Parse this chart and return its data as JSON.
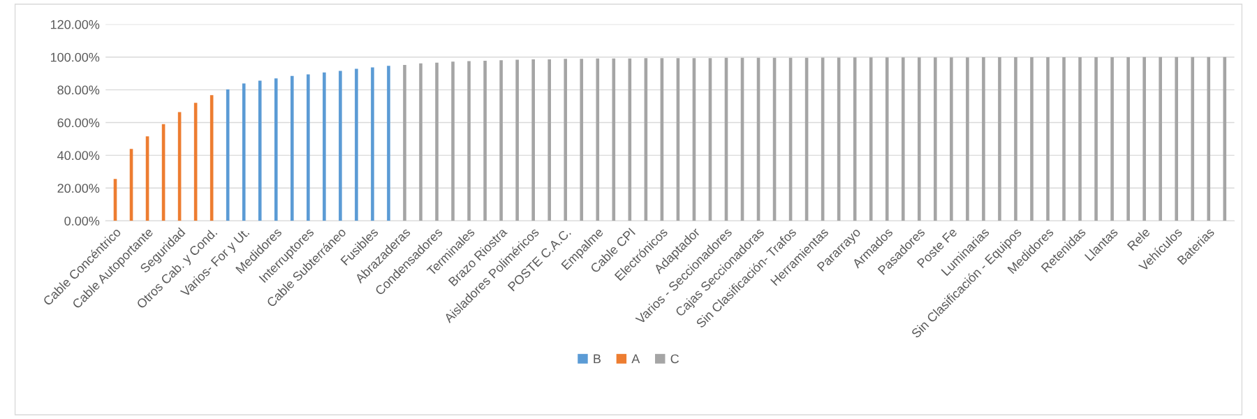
{
  "chart_data": {
    "type": "bar",
    "categories": [
      "Cable Concéntrico",
      null,
      "Cable Autoportante",
      null,
      "Seguridad",
      null,
      "Otros Cab. y Cond.",
      null,
      "Varios- For y Ut.",
      null,
      "Medidores",
      null,
      "Interruptores",
      null,
      "Cable Subterráneo",
      null,
      "Fusibles",
      null,
      "Abrazaderas",
      null,
      "Condensadores",
      null,
      "Terminales",
      null,
      "Brazo Riostra",
      null,
      "Aisladores Poliméricos",
      null,
      "POSTE C.A.C.",
      null,
      "Empalme",
      null,
      "Cable CPI",
      null,
      "Electrónicos",
      null,
      "Adaptador",
      null,
      "Varios - Seccionadores",
      null,
      "Cajas Seccionadoras",
      null,
      "Sin Clasificación- Trafos",
      null,
      "Herramientas",
      null,
      "Pararrayo",
      null,
      "Armados",
      null,
      "Pasadores",
      null,
      "Poste Fe",
      null,
      "Luminarias",
      null,
      "Sin Clasificación - Equipos",
      null,
      "Medidores",
      null,
      "Retenidas",
      null,
      "Llantas",
      null,
      "Rele",
      null,
      "Vehículos",
      null,
      "Baterias",
      null
    ],
    "series": [
      {
        "name": "B",
        "color": "#5b9bd5",
        "values": [
          null,
          null,
          null,
          null,
          null,
          null,
          null,
          80.3,
          83.9,
          85.6,
          87.0,
          88.5,
          89.4,
          90.6,
          91.6,
          92.8,
          93.7,
          94.7,
          null,
          null,
          null,
          null,
          null,
          null,
          null,
          null,
          null,
          null,
          null,
          null,
          null,
          null,
          null,
          null,
          null,
          null,
          null,
          null,
          null,
          null,
          null,
          null,
          null,
          null,
          null,
          null,
          null,
          null,
          null,
          null,
          null,
          null,
          null,
          null,
          null,
          null,
          null,
          null,
          null,
          null,
          null,
          null,
          null,
          null,
          null,
          null,
          null,
          null,
          null,
          null
        ]
      },
      {
        "name": "A",
        "color": "#ed7d31",
        "values": [
          25.6,
          43.9,
          51.6,
          59.0,
          66.4,
          72.0,
          76.7,
          null,
          null,
          null,
          null,
          null,
          null,
          null,
          null,
          null,
          null,
          null,
          null,
          null,
          null,
          null,
          null,
          null,
          null,
          null,
          null,
          null,
          null,
          null,
          null,
          null,
          null,
          null,
          null,
          null,
          null,
          null,
          null,
          null,
          null,
          null,
          null,
          null,
          null,
          null,
          null,
          null,
          null,
          null,
          null,
          null,
          null,
          null,
          null,
          null,
          null,
          null,
          null,
          null,
          null,
          null,
          null,
          null,
          null,
          null,
          null,
          null,
          null,
          null
        ]
      },
      {
        "name": "C",
        "color": "#a5a5a5",
        "values": [
          null,
          null,
          null,
          null,
          null,
          null,
          null,
          null,
          null,
          null,
          null,
          null,
          null,
          null,
          null,
          null,
          null,
          null,
          95.2,
          96.1,
          96.6,
          97.2,
          97.5,
          97.7,
          98.1,
          98.4,
          98.6,
          98.6,
          98.9,
          98.9,
          99.1,
          99.1,
          99.1,
          99.3,
          99.3,
          99.3,
          99.3,
          99.3,
          99.5,
          99.5,
          99.5,
          99.6,
          99.6,
          99.6,
          99.7,
          99.7,
          99.8,
          99.8,
          99.8,
          99.8,
          99.8,
          99.8,
          99.8,
          99.8,
          99.9,
          99.9,
          99.9,
          99.9,
          99.9,
          99.9,
          99.9,
          99.9,
          99.9,
          99.9,
          100,
          100,
          100,
          100,
          100,
          100
        ]
      }
    ],
    "ylim": [
      0,
      120
    ],
    "yticks": [
      {
        "value": 0,
        "label": "0.00%"
      },
      {
        "value": 20,
        "label": "20.00%"
      },
      {
        "value": 40,
        "label": "40.00%"
      },
      {
        "value": 60,
        "label": "60.00%"
      },
      {
        "value": 80,
        "label": "80.00%"
      },
      {
        "value": 100,
        "label": "100.00%"
      },
      {
        "value": 120,
        "label": "120.00%"
      }
    ],
    "grid": "y",
    "legend": "bottom"
  }
}
